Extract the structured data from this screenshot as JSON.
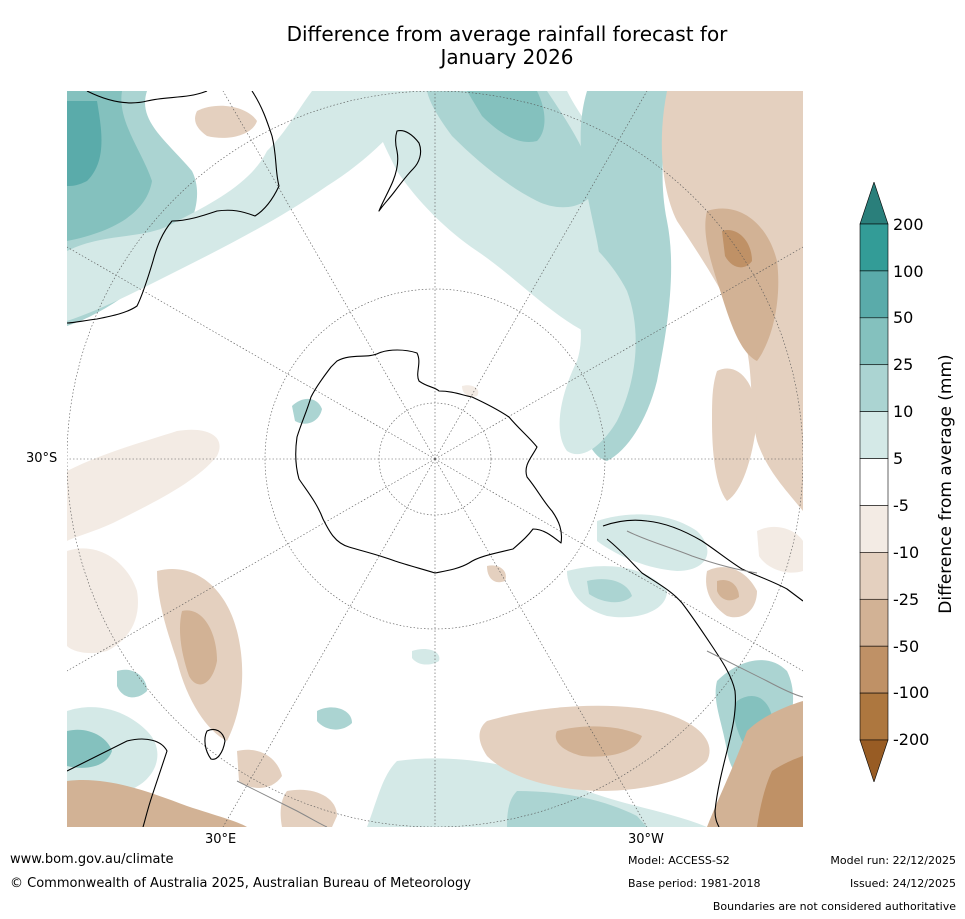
{
  "title_line1": "Difference from average rainfall forecast for",
  "title_line2": "January 2026",
  "map": {
    "projection": "south-polar-stereographic",
    "labels": {
      "lat_30s": "30°S",
      "lon_30e": "30°E",
      "lon_30w": "30°W"
    }
  },
  "legend": {
    "label": "Difference from average (mm)",
    "ticks": [
      "200",
      "100",
      "50",
      "25",
      "10",
      "5",
      "-5",
      "-10",
      "-25",
      "-50",
      "-100",
      "-200"
    ],
    "colors": [
      "#2a7f7b",
      "#339c97",
      "#5aabaa",
      "#84c1be",
      "#abd4d2",
      "#d4e9e7",
      "#ffffff",
      "#f3ebe4",
      "#e4d0bf",
      "#d2b295",
      "#bf9166",
      "#ad773f",
      "#985c24"
    ]
  },
  "footer": {
    "url": "www.bom.gov.au/climate",
    "copyright": "© Commonwealth of Australia 2025, Australian Bureau of Meteorology",
    "model": "Model: ACCESS-S2",
    "base_period": "Base period: 1981-2018",
    "model_run": "Model run: 22/12/2025",
    "issued": "Issued: 24/12/2025",
    "disclaimer": "Boundaries are not considered authoritative"
  }
}
